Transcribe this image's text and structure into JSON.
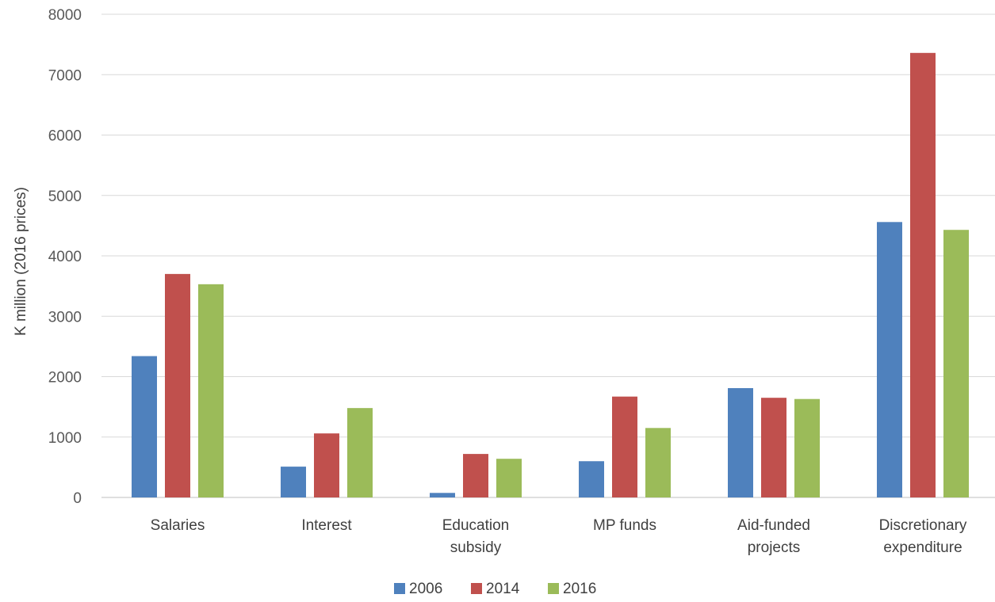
{
  "chart_data": {
    "type": "bar",
    "title": "",
    "xlabel": "",
    "ylabel": "K million (2016 prices)",
    "ylim": [
      0,
      8000
    ],
    "yticks": [
      0,
      1000,
      2000,
      3000,
      4000,
      5000,
      6000,
      7000,
      8000
    ],
    "grid": true,
    "legend_position": "bottom",
    "categories": [
      [
        "Salaries"
      ],
      [
        "Interest"
      ],
      [
        "Education",
        "subsidy"
      ],
      [
        "MP funds"
      ],
      [
        "Aid-funded",
        "projects"
      ],
      [
        "Discretionary",
        "expenditure"
      ]
    ],
    "series": [
      {
        "name": "2006",
        "color": "#4F81BD",
        "values": [
          2340,
          510,
          75,
          600,
          1810,
          4560
        ]
      },
      {
        "name": "2014",
        "color": "#C0504D",
        "values": [
          3700,
          1060,
          720,
          1670,
          1650,
          7360
        ]
      },
      {
        "name": "2016",
        "color": "#9BBB59",
        "values": [
          3530,
          1480,
          640,
          1150,
          1630,
          4430
        ]
      }
    ]
  }
}
